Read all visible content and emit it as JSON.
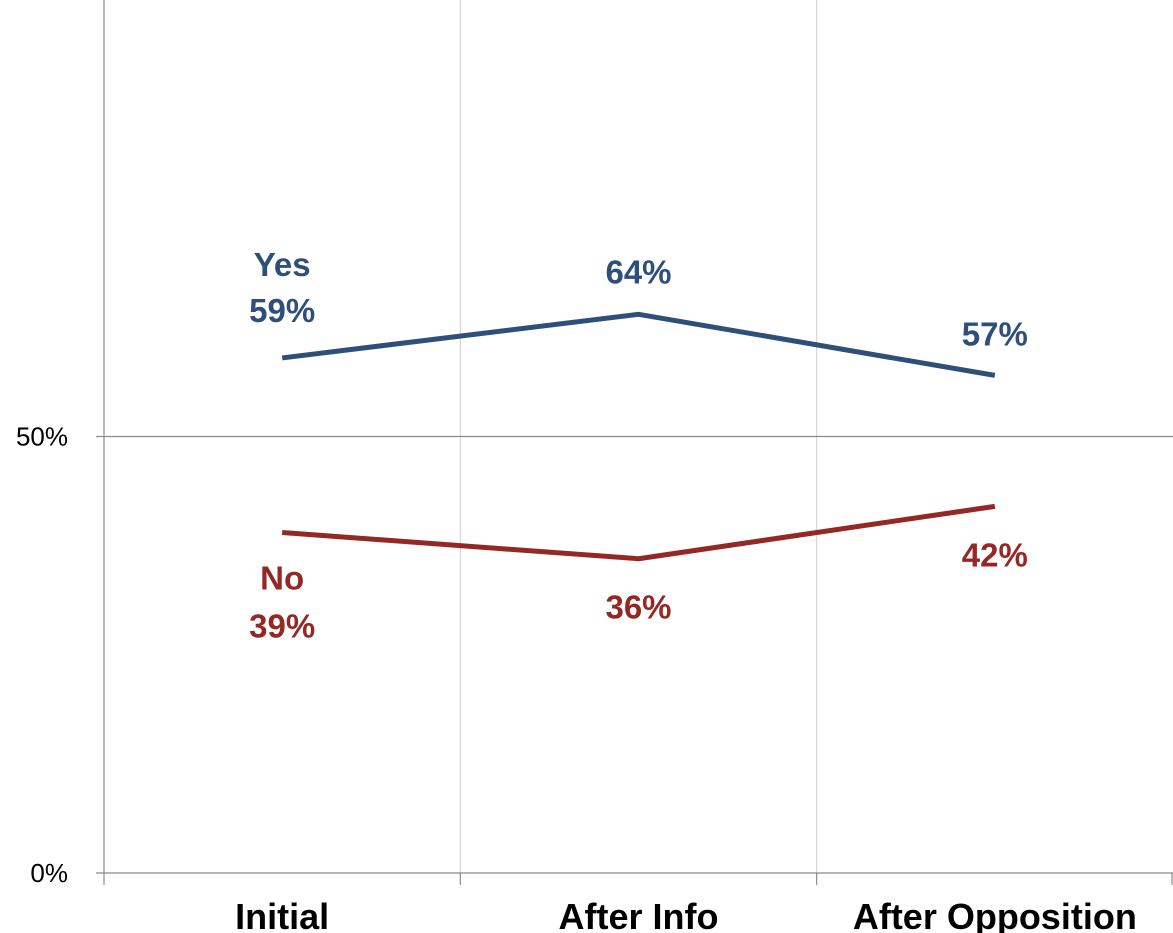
{
  "chart_data": {
    "type": "line",
    "categories": [
      "Initial",
      "After Info",
      "After Opposition"
    ],
    "series": [
      {
        "name": "Yes",
        "values": [
          59,
          64,
          57
        ],
        "color": "#2E4F7A",
        "data_labels": [
          "59%",
          "64%",
          "57%"
        ]
      },
      {
        "name": "No",
        "values": [
          39,
          36,
          42
        ],
        "color": "#942824",
        "data_labels": [
          "39%",
          "36%",
          "42%"
        ]
      }
    ],
    "y_ticks": [
      {
        "value": 0,
        "label": "0%"
      },
      {
        "value": 50,
        "label": "50%"
      }
    ],
    "ylim": [
      0,
      100
    ],
    "grid": {
      "vertical": true,
      "horizontal_at": [
        50
      ]
    },
    "legend": "none (series names placed as labels next to the first point)"
  }
}
